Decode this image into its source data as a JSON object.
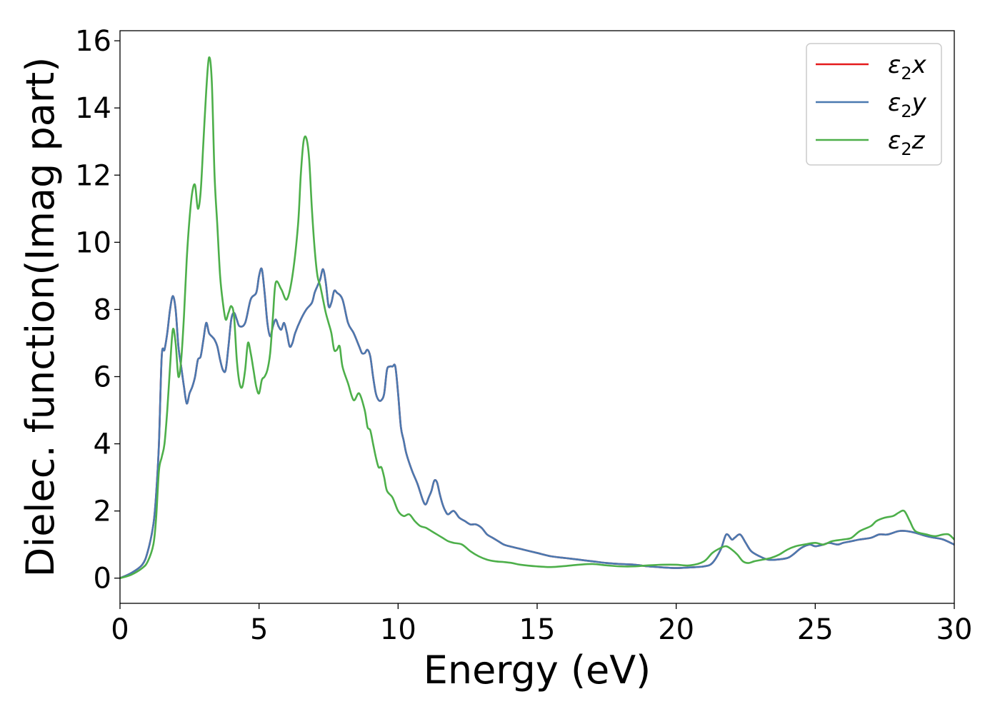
{
  "chart_data": {
    "type": "line",
    "xlabel": "Energy (eV)",
    "ylabel": "Dielec. function(Imag part)",
    "xlim": [
      0,
      30
    ],
    "ylim": [
      -0.75,
      16.3
    ],
    "xticks": [
      "0",
      "5",
      "10",
      "15",
      "20",
      "25",
      "30"
    ],
    "yticks": [
      "0",
      "2",
      "4",
      "6",
      "8",
      "10",
      "12",
      "14",
      "16"
    ],
    "grid": false,
    "legend_position": "top-right",
    "series": [
      {
        "name": "ε₂x",
        "legend_main": "ε",
        "legend_sub": "2",
        "legend_var": "x",
        "color": "#e41a1c",
        "x": [
          0,
          0.4,
          0.8,
          1.0,
          1.2,
          1.3,
          1.4,
          1.5,
          1.6,
          1.7,
          1.8,
          1.9,
          2.0,
          2.1,
          2.2,
          2.3,
          2.4,
          2.5,
          2.6,
          2.7,
          2.8,
          2.9,
          3.0,
          3.1,
          3.2,
          3.3,
          3.4,
          3.5,
          3.6,
          3.7,
          3.8,
          3.9,
          4.0,
          4.1,
          4.2,
          4.3,
          4.5,
          4.7,
          4.9,
          5.0,
          5.1,
          5.2,
          5.3,
          5.4,
          5.5,
          5.6,
          5.7,
          5.8,
          5.9,
          6.0,
          6.1,
          6.2,
          6.3,
          6.5,
          6.7,
          6.9,
          7.0,
          7.1,
          7.2,
          7.3,
          7.4,
          7.5,
          7.6,
          7.7,
          7.8,
          8.0,
          8.2,
          8.4,
          8.6,
          8.7,
          8.8,
          8.9,
          9.0,
          9.1,
          9.2,
          9.3,
          9.4,
          9.5,
          9.6,
          9.7,
          9.8,
          9.9,
          10.0,
          10.1,
          10.2,
          10.3,
          10.5,
          10.7,
          10.9,
          11.0,
          11.1,
          11.2,
          11.3,
          11.4,
          11.5,
          11.6,
          11.7,
          11.8,
          12.0,
          12.2,
          12.4,
          12.6,
          12.8,
          13.0,
          13.2,
          13.4,
          13.6,
          13.8,
          14.0,
          14.5,
          15.0,
          15.5,
          16.0,
          16.5,
          17.0,
          17.5,
          18.0,
          18.5,
          19.0,
          19.5,
          20.0,
          20.5,
          21.0,
          21.3,
          21.6,
          21.8,
          22.0,
          22.1,
          22.3,
          22.5,
          22.7,
          23.0,
          23.3,
          23.6,
          24.0,
          24.2,
          24.5,
          24.8,
          25.0,
          25.3,
          25.5,
          25.8,
          26.0,
          26.3,
          26.6,
          27.0,
          27.3,
          27.6,
          28.0,
          28.3,
          28.6,
          29.0,
          29.3,
          29.6,
          30.0
        ],
        "y": [
          0,
          0.15,
          0.4,
          0.8,
          1.6,
          2.5,
          4.0,
          6.6,
          6.8,
          7.3,
          8.0,
          8.4,
          8.0,
          6.9,
          6.3,
          5.7,
          5.2,
          5.5,
          5.7,
          6.0,
          6.5,
          6.6,
          7.1,
          7.6,
          7.3,
          7.2,
          7.1,
          6.9,
          6.5,
          6.2,
          6.2,
          6.9,
          7.7,
          7.9,
          7.7,
          7.5,
          7.6,
          8.3,
          8.5,
          9.0,
          9.2,
          8.5,
          7.6,
          7.2,
          7.5,
          7.7,
          7.5,
          7.4,
          7.6,
          7.3,
          6.9,
          7.0,
          7.3,
          7.7,
          8.0,
          8.2,
          8.5,
          8.7,
          8.9,
          9.2,
          8.8,
          8.1,
          8.2,
          8.55,
          8.5,
          8.3,
          7.6,
          7.3,
          6.9,
          6.7,
          6.7,
          6.8,
          6.6,
          6.0,
          5.5,
          5.3,
          5.3,
          5.5,
          6.2,
          6.3,
          6.3,
          6.3,
          5.5,
          4.5,
          4.1,
          3.7,
          3.2,
          2.8,
          2.3,
          2.2,
          2.4,
          2.6,
          2.9,
          2.85,
          2.5,
          2.2,
          2.0,
          1.9,
          2.0,
          1.8,
          1.7,
          1.6,
          1.6,
          1.5,
          1.3,
          1.2,
          1.1,
          1.0,
          0.95,
          0.85,
          0.75,
          0.65,
          0.6,
          0.55,
          0.5,
          0.45,
          0.42,
          0.4,
          0.35,
          0.32,
          0.3,
          0.32,
          0.35,
          0.45,
          0.85,
          1.3,
          1.15,
          1.2,
          1.3,
          1.05,
          0.8,
          0.65,
          0.55,
          0.55,
          0.6,
          0.7,
          0.9,
          1.0,
          0.95,
          1.0,
          1.05,
          1.0,
          1.05,
          1.1,
          1.15,
          1.2,
          1.3,
          1.3,
          1.4,
          1.4,
          1.35,
          1.25,
          1.2,
          1.15,
          1.0
        ]
      },
      {
        "name": "ε₂y",
        "legend_main": "ε",
        "legend_sub": "2",
        "legend_var": "y",
        "color": "#4a79b0",
        "x": [
          0,
          0.4,
          0.8,
          1.0,
          1.2,
          1.3,
          1.4,
          1.5,
          1.6,
          1.7,
          1.8,
          1.9,
          2.0,
          2.1,
          2.2,
          2.3,
          2.4,
          2.5,
          2.6,
          2.7,
          2.8,
          2.9,
          3.0,
          3.1,
          3.2,
          3.3,
          3.4,
          3.5,
          3.6,
          3.7,
          3.8,
          3.9,
          4.0,
          4.1,
          4.2,
          4.3,
          4.5,
          4.7,
          4.9,
          5.0,
          5.1,
          5.2,
          5.3,
          5.4,
          5.5,
          5.6,
          5.7,
          5.8,
          5.9,
          6.0,
          6.1,
          6.2,
          6.3,
          6.5,
          6.7,
          6.9,
          7.0,
          7.1,
          7.2,
          7.3,
          7.4,
          7.5,
          7.6,
          7.7,
          7.8,
          8.0,
          8.2,
          8.4,
          8.6,
          8.7,
          8.8,
          8.9,
          9.0,
          9.1,
          9.2,
          9.3,
          9.4,
          9.5,
          9.6,
          9.7,
          9.8,
          9.9,
          10.0,
          10.1,
          10.2,
          10.3,
          10.5,
          10.7,
          10.9,
          11.0,
          11.1,
          11.2,
          11.3,
          11.4,
          11.5,
          11.6,
          11.7,
          11.8,
          12.0,
          12.2,
          12.4,
          12.6,
          12.8,
          13.0,
          13.2,
          13.4,
          13.6,
          13.8,
          14.0,
          14.5,
          15.0,
          15.5,
          16.0,
          16.5,
          17.0,
          17.5,
          18.0,
          18.5,
          19.0,
          19.5,
          20.0,
          20.5,
          21.0,
          21.3,
          21.6,
          21.8,
          22.0,
          22.1,
          22.3,
          22.5,
          22.7,
          23.0,
          23.3,
          23.6,
          24.0,
          24.2,
          24.5,
          24.8,
          25.0,
          25.3,
          25.5,
          25.8,
          26.0,
          26.3,
          26.6,
          27.0,
          27.3,
          27.6,
          28.0,
          28.3,
          28.6,
          29.0,
          29.3,
          29.6,
          30.0
        ],
        "y": [
          0,
          0.15,
          0.4,
          0.8,
          1.6,
          2.5,
          4.0,
          6.6,
          6.8,
          7.3,
          8.0,
          8.4,
          8.0,
          6.9,
          6.3,
          5.7,
          5.2,
          5.5,
          5.7,
          6.0,
          6.5,
          6.6,
          7.1,
          7.6,
          7.3,
          7.2,
          7.1,
          6.9,
          6.5,
          6.2,
          6.2,
          6.9,
          7.7,
          7.9,
          7.7,
          7.5,
          7.6,
          8.3,
          8.5,
          9.0,
          9.2,
          8.5,
          7.6,
          7.2,
          7.5,
          7.7,
          7.5,
          7.4,
          7.6,
          7.3,
          6.9,
          7.0,
          7.3,
          7.7,
          8.0,
          8.2,
          8.5,
          8.7,
          8.9,
          9.2,
          8.8,
          8.1,
          8.2,
          8.55,
          8.5,
          8.3,
          7.6,
          7.3,
          6.9,
          6.7,
          6.7,
          6.8,
          6.6,
          6.0,
          5.5,
          5.3,
          5.3,
          5.5,
          6.2,
          6.3,
          6.3,
          6.3,
          5.5,
          4.5,
          4.1,
          3.7,
          3.2,
          2.8,
          2.3,
          2.2,
          2.4,
          2.6,
          2.9,
          2.85,
          2.5,
          2.2,
          2.0,
          1.9,
          2.0,
          1.8,
          1.7,
          1.6,
          1.6,
          1.5,
          1.3,
          1.2,
          1.1,
          1.0,
          0.95,
          0.85,
          0.75,
          0.65,
          0.6,
          0.55,
          0.5,
          0.45,
          0.42,
          0.4,
          0.35,
          0.32,
          0.3,
          0.32,
          0.35,
          0.45,
          0.85,
          1.3,
          1.15,
          1.2,
          1.3,
          1.05,
          0.8,
          0.65,
          0.55,
          0.55,
          0.6,
          0.7,
          0.9,
          1.0,
          0.95,
          1.0,
          1.05,
          1.0,
          1.05,
          1.1,
          1.15,
          1.2,
          1.3,
          1.3,
          1.4,
          1.4,
          1.35,
          1.25,
          1.2,
          1.15,
          1.0
        ]
      },
      {
        "name": "ε₂z",
        "legend_main": "ε",
        "legend_sub": "2",
        "legend_var": "z",
        "color": "#4daf4a",
        "x": [
          0,
          0.4,
          0.8,
          1.0,
          1.2,
          1.3,
          1.4,
          1.5,
          1.6,
          1.7,
          1.8,
          1.9,
          2.0,
          2.1,
          2.2,
          2.3,
          2.4,
          2.5,
          2.6,
          2.7,
          2.8,
          2.9,
          3.0,
          3.1,
          3.2,
          3.3,
          3.4,
          3.5,
          3.6,
          3.7,
          3.8,
          3.9,
          4.0,
          4.1,
          4.2,
          4.3,
          4.4,
          4.5,
          4.6,
          4.7,
          4.8,
          4.9,
          5.0,
          5.1,
          5.2,
          5.3,
          5.4,
          5.5,
          5.6,
          5.8,
          6.0,
          6.2,
          6.4,
          6.5,
          6.6,
          6.7,
          6.8,
          6.9,
          7.0,
          7.1,
          7.2,
          7.3,
          7.4,
          7.5,
          7.6,
          7.7,
          7.8,
          7.9,
          8.0,
          8.2,
          8.4,
          8.6,
          8.8,
          8.9,
          9.0,
          9.1,
          9.2,
          9.3,
          9.4,
          9.5,
          9.6,
          9.8,
          10.0,
          10.2,
          10.4,
          10.6,
          10.8,
          11.0,
          11.2,
          11.4,
          11.6,
          11.8,
          12.0,
          12.3,
          12.6,
          12.9,
          13.2,
          13.5,
          13.8,
          14.1,
          14.4,
          15.0,
          15.5,
          16.0,
          16.5,
          17.0,
          17.5,
          18.0,
          18.5,
          19.0,
          19.5,
          20.0,
          20.5,
          21.0,
          21.3,
          21.6,
          21.8,
          22.0,
          22.2,
          22.4,
          22.6,
          22.8,
          23.1,
          23.4,
          23.7,
          24.0,
          24.3,
          24.6,
          25.0,
          25.3,
          25.6,
          26.0,
          26.3,
          26.6,
          27.0,
          27.2,
          27.5,
          27.8,
          28.0,
          28.2,
          28.4,
          28.6,
          29.0,
          29.3,
          29.6,
          29.8,
          30.0
        ],
        "y": [
          0,
          0.1,
          0.3,
          0.5,
          1.0,
          1.8,
          3.2,
          3.6,
          4.0,
          5.0,
          6.3,
          7.4,
          7.0,
          6.0,
          6.5,
          7.8,
          9.5,
          10.7,
          11.5,
          11.7,
          11.0,
          11.5,
          13.0,
          14.5,
          15.5,
          14.8,
          12.0,
          10.5,
          9.0,
          8.2,
          7.7,
          7.9,
          8.1,
          7.8,
          6.5,
          5.8,
          5.7,
          6.2,
          7.0,
          6.7,
          6.2,
          5.7,
          5.5,
          5.9,
          6.0,
          6.2,
          6.7,
          7.8,
          8.8,
          8.6,
          8.3,
          9.0,
          10.5,
          12.0,
          13.0,
          13.1,
          12.5,
          11.0,
          9.8,
          9.0,
          8.7,
          8.3,
          7.9,
          7.6,
          7.3,
          6.8,
          6.8,
          6.9,
          6.3,
          5.8,
          5.3,
          5.5,
          5.0,
          4.5,
          4.4,
          4.0,
          3.6,
          3.3,
          3.3,
          3.0,
          2.6,
          2.4,
          2.0,
          1.85,
          1.9,
          1.7,
          1.55,
          1.5,
          1.4,
          1.3,
          1.2,
          1.1,
          1.05,
          1.0,
          0.8,
          0.65,
          0.55,
          0.5,
          0.48,
          0.45,
          0.4,
          0.35,
          0.33,
          0.36,
          0.4,
          0.42,
          0.38,
          0.35,
          0.35,
          0.38,
          0.4,
          0.4,
          0.38,
          0.5,
          0.75,
          0.9,
          0.95,
          0.85,
          0.7,
          0.5,
          0.45,
          0.5,
          0.55,
          0.6,
          0.7,
          0.85,
          0.95,
          1.0,
          1.05,
          1.0,
          1.1,
          1.15,
          1.2,
          1.4,
          1.55,
          1.7,
          1.8,
          1.85,
          1.95,
          2.0,
          1.7,
          1.4,
          1.3,
          1.25,
          1.3,
          1.3,
          1.15
        ]
      }
    ]
  }
}
